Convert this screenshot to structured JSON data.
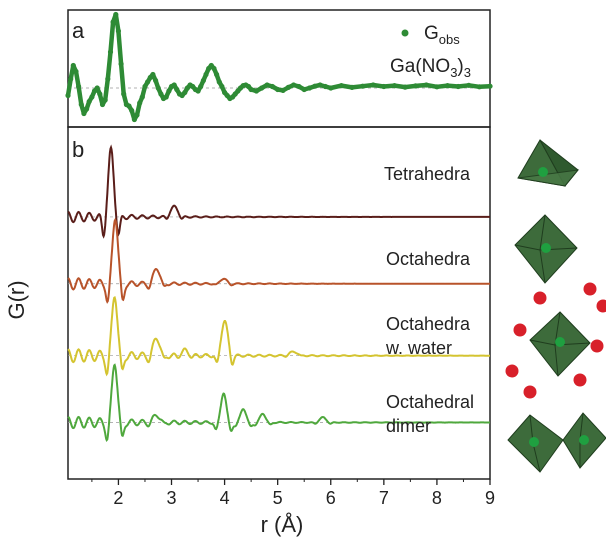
{
  "chart_data": [
    {
      "type": "line",
      "panel_label": "a",
      "title": "Ga(NO3)3",
      "title_parts": {
        "pre": "Ga(NO",
        "sub": "3",
        "post": ")",
        "sub2": "3"
      },
      "legend": {
        "main": "G",
        "sub": "obs",
        "placement": "top-right"
      },
      "xlim": [
        1.05,
        9.0
      ],
      "ylim": [
        -1.3,
        2.6
      ],
      "baseline": 0,
      "series": [
        {
          "name": "Gobs",
          "color": "#2e8b35",
          "marker": "circle",
          "x": [
            1.05,
            1.1,
            1.15,
            1.2,
            1.25,
            1.3,
            1.35,
            1.4,
            1.45,
            1.5,
            1.55,
            1.6,
            1.65,
            1.7,
            1.75,
            1.8,
            1.85,
            1.9,
            1.95,
            2.0,
            2.05,
            2.1,
            2.15,
            2.2,
            2.25,
            2.3,
            2.35,
            2.4,
            2.45,
            2.5,
            2.55,
            2.6,
            2.65,
            2.7,
            2.75,
            2.8,
            2.85,
            2.9,
            2.95,
            3.0,
            3.05,
            3.1,
            3.15,
            3.2,
            3.25,
            3.3,
            3.35,
            3.4,
            3.45,
            3.5,
            3.55,
            3.6,
            3.65,
            3.7,
            3.75,
            3.8,
            3.85,
            3.9,
            3.95,
            4.0,
            4.05,
            4.1,
            4.15,
            4.2,
            4.25,
            4.3,
            4.35,
            4.4,
            4.45,
            4.5,
            4.6,
            4.7,
            4.8,
            4.9,
            5.0,
            5.1,
            5.2,
            5.3,
            5.4,
            5.5,
            5.6,
            5.7,
            5.8,
            5.9,
            6.0,
            6.2,
            6.4,
            6.6,
            6.8,
            7.0,
            7.2,
            7.4,
            7.6,
            7.8,
            8.0,
            8.2,
            8.4,
            8.6,
            8.8,
            9.0
          ],
          "y": [
            -0.25,
            0.3,
            0.75,
            0.55,
            0.05,
            -0.55,
            -0.85,
            -0.7,
            -0.45,
            -0.3,
            -0.1,
            0.0,
            -0.2,
            -0.55,
            -0.4,
            0.3,
            1.2,
            2.2,
            2.45,
            1.9,
            0.8,
            -0.2,
            -0.55,
            -0.6,
            -0.75,
            -1.05,
            -0.9,
            -0.5,
            -0.3,
            0.05,
            0.2,
            0.35,
            0.45,
            0.25,
            0.0,
            -0.2,
            -0.35,
            -0.3,
            -0.1,
            0.05,
            0.1,
            -0.05,
            -0.2,
            -0.25,
            -0.15,
            0.0,
            0.1,
            0.05,
            -0.05,
            -0.1,
            0.05,
            0.25,
            0.45,
            0.65,
            0.75,
            0.65,
            0.45,
            0.2,
            0.05,
            -0.15,
            -0.25,
            -0.35,
            -0.3,
            -0.2,
            -0.1,
            0.0,
            0.08,
            0.1,
            0.05,
            -0.05,
            -0.1,
            0.0,
            0.1,
            0.05,
            -0.05,
            -0.08,
            0.02,
            0.1,
            0.05,
            -0.05,
            0.0,
            0.06,
            0.1,
            0.05,
            0.0,
            0.08,
            0.02,
            0.06,
            0.1,
            0.05,
            0.08,
            0.03,
            0.07,
            0.1,
            0.04,
            0.08,
            0.05,
            0.09,
            0.04,
            0.06
          ]
        }
      ]
    },
    {
      "type": "line",
      "panel_label": "b",
      "xlabel": "r (Å)",
      "ylabel": "G(r)",
      "xlim": [
        1.05,
        9.0
      ],
      "xticks": [
        2,
        3,
        4,
        5,
        6,
        7,
        8,
        9
      ],
      "xtick_labels": [
        "2",
        "3",
        "4",
        "5",
        "6",
        "7",
        "8",
        "9"
      ],
      "series": [
        {
          "name": "Tetrahedra",
          "label_lines": [
            "Tetrahedra"
          ],
          "color": "#5a1e1a",
          "offset": 9.0,
          "peaks": [
            {
              "r": 1.86,
              "height": 2.6,
              "width": 0.05
            },
            {
              "r": 3.05,
              "height": 0.4,
              "width": 0.07
            }
          ],
          "ripple_amp": 0.2,
          "ripple_freq": 11.0,
          "ripple_decay": 0.9
        },
        {
          "name": "Octahedra",
          "label_lines": [
            "Octahedra"
          ],
          "color": "#b8532a",
          "offset": 6.4,
          "peaks": [
            {
              "r": 1.94,
              "height": 2.6,
              "width": 0.05
            },
            {
              "r": 2.72,
              "height": 0.6,
              "width": 0.06
            },
            {
              "r": 3.98,
              "height": 0.2,
              "width": 0.06
            }
          ],
          "ripple_amp": 0.22,
          "ripple_freq": 11.0,
          "ripple_decay": 0.8
        },
        {
          "name": "Octahedra w. water",
          "label_lines": [
            "Octahedra",
            "w. water"
          ],
          "color": "#d4c430",
          "offset": 3.6,
          "peaks": [
            {
              "r": 1.93,
              "height": 2.4,
              "width": 0.05
            },
            {
              "r": 2.72,
              "height": 0.7,
              "width": 0.06
            },
            {
              "r": 3.25,
              "height": 0.2,
              "width": 0.06
            },
            {
              "r": 4.0,
              "height": 1.35,
              "width": 0.06
            },
            {
              "r": 5.3,
              "height": 0.15,
              "width": 0.08
            }
          ],
          "ripple_amp": 0.25,
          "ripple_freq": 11.0,
          "ripple_decay": 0.55
        },
        {
          "name": "Octahedral dimer",
          "label_lines": [
            "Octahedral",
            "dimer"
          ],
          "color": "#4fa83d",
          "offset": 1.0,
          "peaks": [
            {
              "r": 1.93,
              "height": 2.35,
              "width": 0.05
            },
            {
              "r": 2.72,
              "height": 0.3,
              "width": 0.06
            },
            {
              "r": 3.98,
              "height": 1.15,
              "width": 0.05
            },
            {
              "r": 4.35,
              "height": 0.55,
              "width": 0.05
            },
            {
              "r": 4.72,
              "height": 0.35,
              "width": 0.05
            },
            {
              "r": 5.85,
              "height": 0.2,
              "width": 0.06
            }
          ],
          "ripple_amp": 0.22,
          "ripple_freq": 11.0,
          "ripple_decay": 0.6
        }
      ]
    }
  ]
}
